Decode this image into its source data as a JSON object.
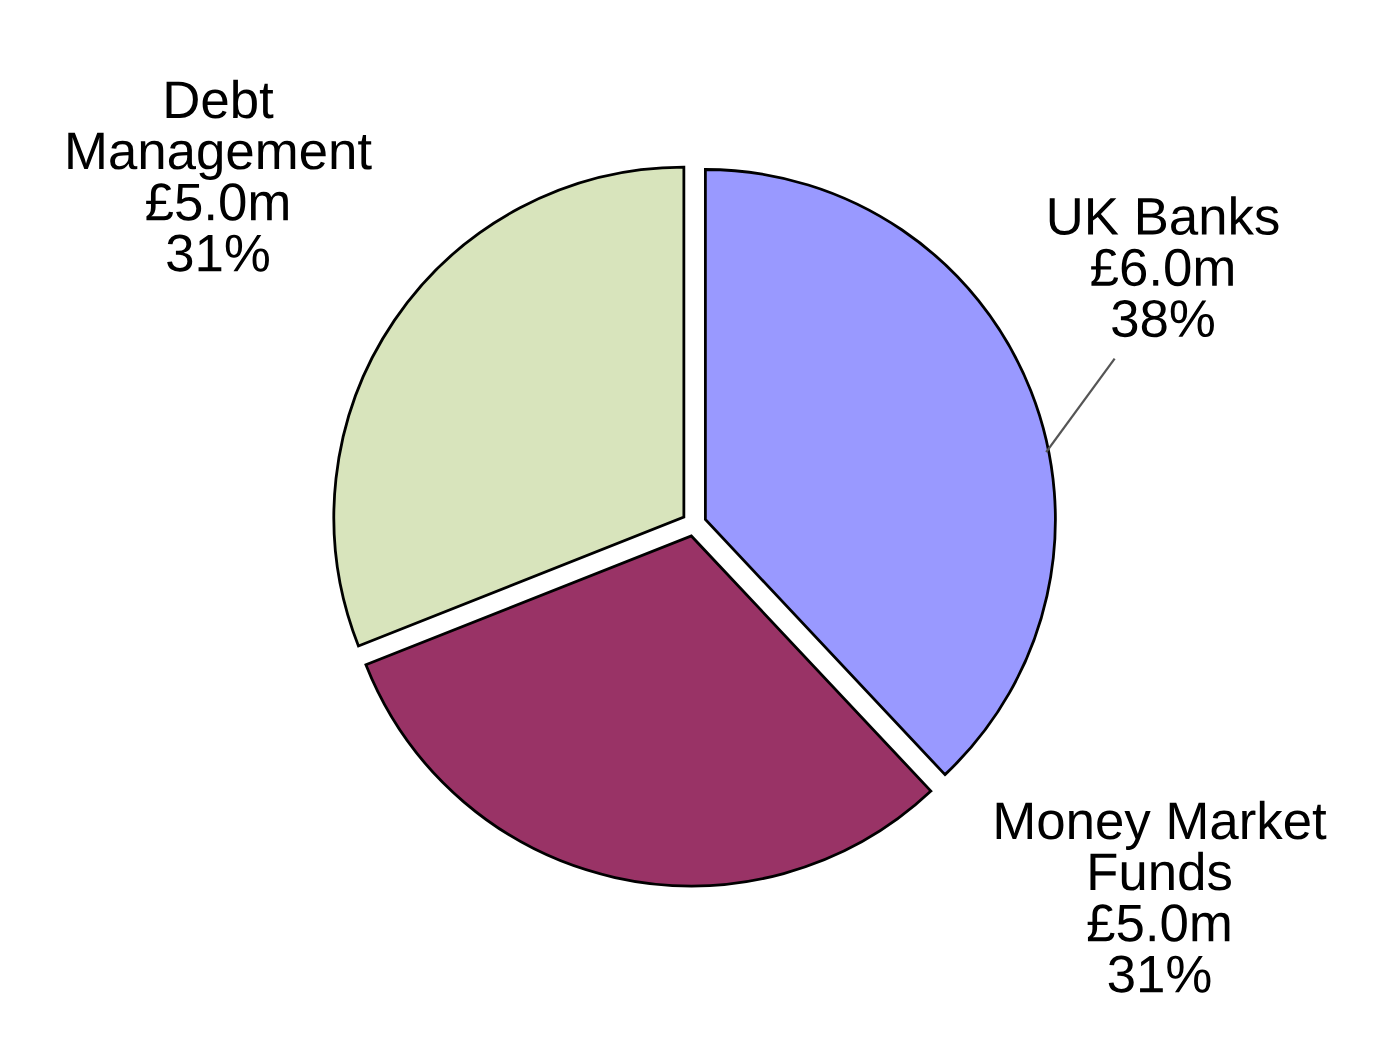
{
  "chart_data": {
    "type": "pie",
    "categories": [
      "UK Banks",
      "Money Market\nFunds",
      "Debt\nManagement"
    ],
    "values": [
      38,
      31,
      31
    ],
    "colors": [
      "#9999ff",
      "#993366",
      "#d8e4bc"
    ],
    "value_labels": [
      "£6.0m\n38%",
      "£5.0m\n31%",
      "£5.0m\n31%"
    ],
    "legend": false
  }
}
